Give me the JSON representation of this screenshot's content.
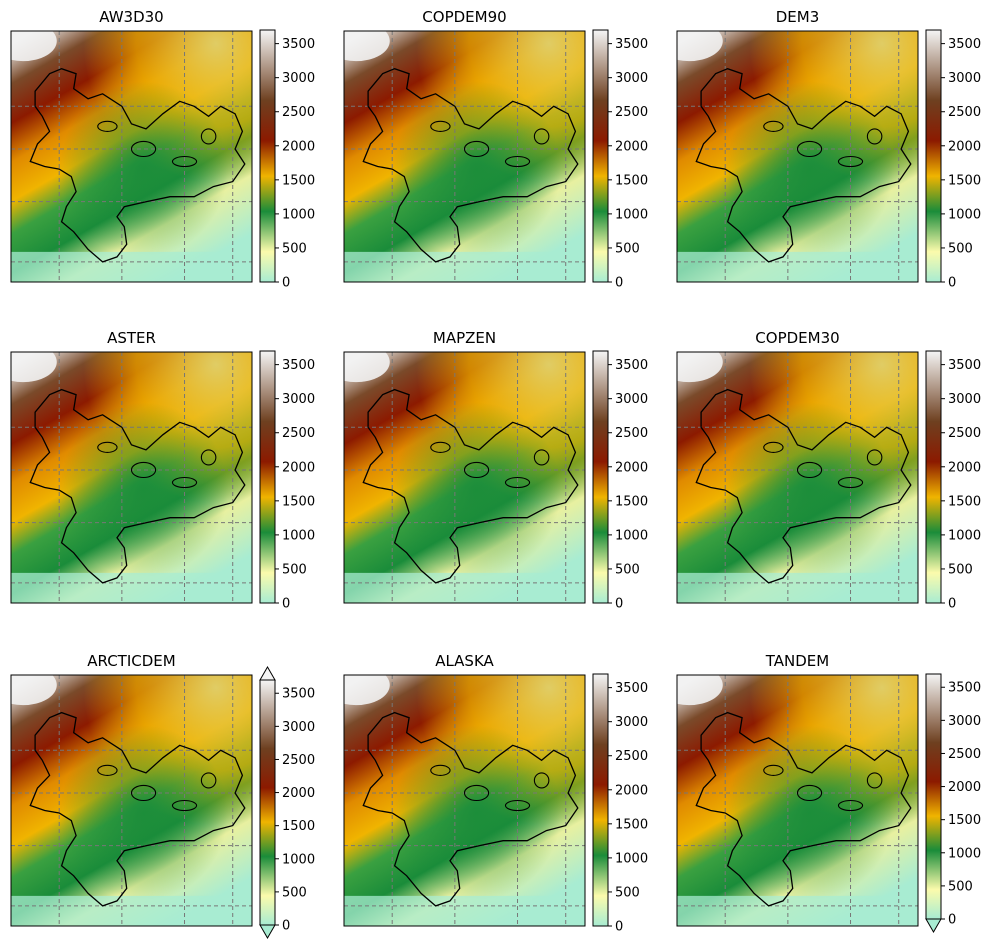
{
  "figure": {
    "panels": [
      {
        "title": "AW3D30",
        "gaps": "heavy"
      },
      {
        "title": "COPDEM90",
        "gaps": "none"
      },
      {
        "title": "DEM3",
        "gaps": "none"
      },
      {
        "title": "ASTER",
        "gaps": "none"
      },
      {
        "title": "MAPZEN",
        "gaps": "none"
      },
      {
        "title": "COPDEM30",
        "gaps": "none"
      },
      {
        "title": "ARCTICDEM",
        "gaps": "light"
      },
      {
        "title": "ALASKA",
        "gaps": "none"
      },
      {
        "title": "TANDEM",
        "gaps": "few"
      }
    ]
  },
  "chart_data": {
    "type": "heatmap",
    "layout": "3x3 grid",
    "colormap": "terrain-like (pale green → green → yellow → orange → dark red → brown → white)",
    "colormap_stops": [
      "#a8ecd2",
      "#fbfbac",
      "#1a8c3a",
      "#f0b400",
      "#8c1a00",
      "#6e4020",
      "#f5f5f5"
    ],
    "colorbar_range": [
      0,
      3700
    ],
    "grid": "dashed grey",
    "glacier_outline": "black",
    "panels": [
      {
        "title": "AW3D30",
        "colorbar_ticks": [
          "0",
          "500",
          "1000",
          "1500",
          "2000",
          "2500",
          "3000",
          "3500"
        ],
        "colorbar_extend": "neither"
      },
      {
        "title": "COPDEM90",
        "colorbar_ticks": [
          "0",
          "500",
          "1000",
          "1500",
          "2000",
          "2500",
          "3000",
          "3500"
        ],
        "colorbar_extend": "neither"
      },
      {
        "title": "DEM3",
        "colorbar_ticks": [
          "0",
          "500",
          "1000",
          "1500",
          "2000",
          "2500",
          "3000",
          "3500"
        ],
        "colorbar_extend": "neither"
      },
      {
        "title": "ASTER",
        "colorbar_ticks": [
          "0",
          "500",
          "1000",
          "1500",
          "2000",
          "2500",
          "3000",
          "3500"
        ],
        "colorbar_extend": "neither"
      },
      {
        "title": "MAPZEN",
        "colorbar_ticks": [
          "0",
          "500",
          "1000",
          "1500",
          "2000",
          "2500",
          "3000",
          "3500"
        ],
        "colorbar_extend": "neither"
      },
      {
        "title": "COPDEM30",
        "colorbar_ticks": [
          "0",
          "500",
          "1000",
          "1500",
          "2000",
          "2500",
          "3000",
          "3500"
        ],
        "colorbar_extend": "neither"
      },
      {
        "title": "ARCTICDEM",
        "colorbar_ticks": [
          "0",
          "500",
          "1000",
          "1500",
          "2000",
          "2500",
          "3000",
          "3500"
        ],
        "colorbar_extend": "both"
      },
      {
        "title": "ALASKA",
        "colorbar_ticks": [
          "0",
          "500",
          "1000",
          "1500",
          "2000",
          "2500",
          "3000",
          "3500"
        ],
        "colorbar_extend": "neither"
      },
      {
        "title": "TANDEM",
        "colorbar_ticks": [
          "0",
          "500",
          "1000",
          "1500",
          "2000",
          "2500",
          "3000",
          "3500"
        ],
        "colorbar_extend": "min"
      }
    ]
  }
}
